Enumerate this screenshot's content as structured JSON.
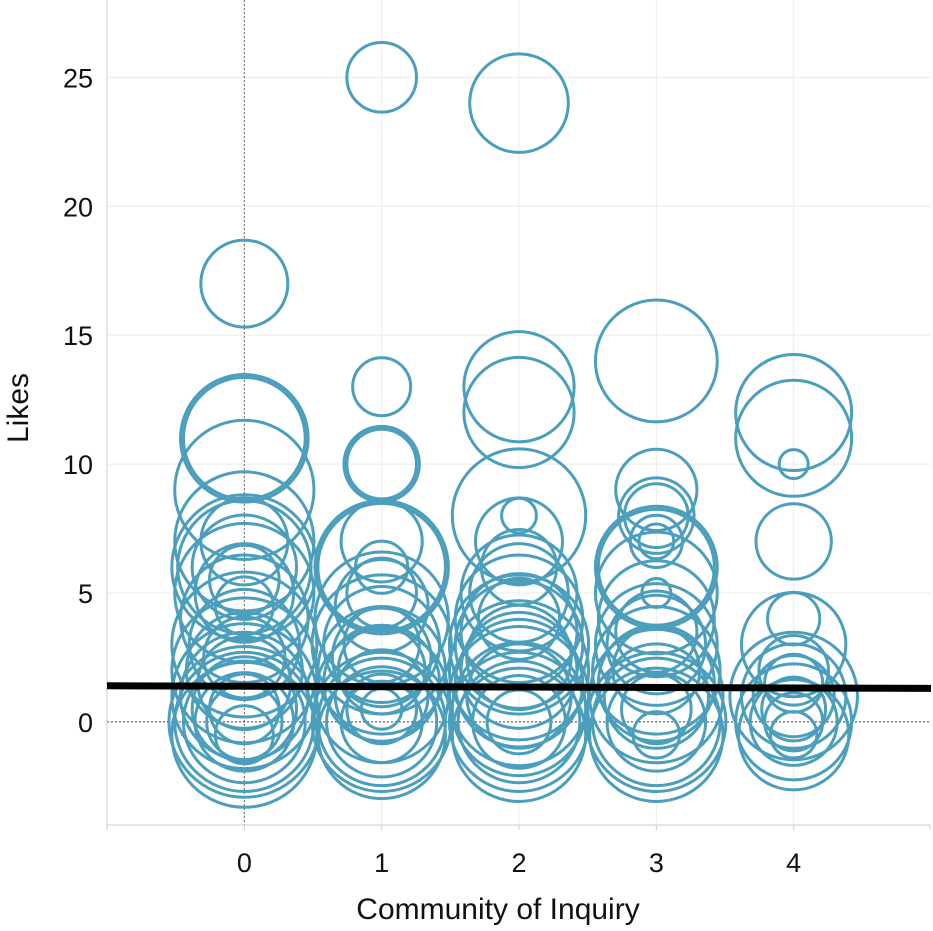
{
  "chart_data": {
    "type": "scatter",
    "title": "",
    "xlabel": "Community of Inquiry",
    "ylabel": "Likes",
    "xlim": [
      -1,
      5
    ],
    "ylim": [
      -4,
      28
    ],
    "xticks": [
      0,
      1,
      2,
      3,
      4
    ],
    "yticks": [
      0,
      5,
      10,
      15,
      20,
      25
    ],
    "grid": true,
    "reference_lines": {
      "x": 0,
      "y": 0
    },
    "bubble_color": "#4b9ebc",
    "trend_line": {
      "color": "#000000",
      "points": [
        [
          -1,
          1.4
        ],
        [
          5,
          1.3
        ]
      ]
    },
    "points": [
      {
        "x": 0,
        "y": 17,
        "size": 1.5
      },
      {
        "x": 0,
        "y": 11,
        "size": 2.2
      },
      {
        "x": 0,
        "y": 11,
        "size": 2.1
      },
      {
        "x": 0,
        "y": 9,
        "size": 2.4
      },
      {
        "x": 0,
        "y": 7,
        "size": 2.4
      },
      {
        "x": 0,
        "y": 7,
        "size": 1.5
      },
      {
        "x": 0,
        "y": 6,
        "size": 2.5
      },
      {
        "x": 0,
        "y": 6,
        "size": 2.3
      },
      {
        "x": 0,
        "y": 6,
        "size": 1.8
      },
      {
        "x": 0,
        "y": 5.5,
        "size": 1.2
      },
      {
        "x": 0,
        "y": 5,
        "size": 2.4
      },
      {
        "x": 0,
        "y": 5,
        "size": 1.7
      },
      {
        "x": 0,
        "y": 4.5,
        "size": 1.0
      },
      {
        "x": 0,
        "y": 4,
        "size": 2.2
      },
      {
        "x": 0,
        "y": 3,
        "size": 2.5
      },
      {
        "x": 0,
        "y": 3,
        "size": 1.9
      },
      {
        "x": 0,
        "y": 2.5,
        "size": 1.4
      },
      {
        "x": 0,
        "y": 2,
        "size": 2.5
      },
      {
        "x": 0,
        "y": 2,
        "size": 2.0
      },
      {
        "x": 0,
        "y": 1.5,
        "size": 1.6
      },
      {
        "x": 0,
        "y": 1,
        "size": 2.5
      },
      {
        "x": 0,
        "y": 1,
        "size": 2.2
      },
      {
        "x": 0,
        "y": 0.5,
        "size": 1.8
      },
      {
        "x": 0,
        "y": 0.5,
        "size": 1.2
      },
      {
        "x": 0,
        "y": 0,
        "size": 2.6
      },
      {
        "x": 0,
        "y": 0,
        "size": 2.4
      },
      {
        "x": 0,
        "y": 0,
        "size": 2.1
      },
      {
        "x": 0,
        "y": 0,
        "size": 1.7
      },
      {
        "x": 0,
        "y": 0,
        "size": 1.3
      },
      {
        "x": 0,
        "y": -0.5,
        "size": 2.5
      },
      {
        "x": 0,
        "y": -0.5,
        "size": 1.0
      },
      {
        "x": 1,
        "y": 25,
        "size": 1.2
      },
      {
        "x": 1,
        "y": 13,
        "size": 1.0
      },
      {
        "x": 1,
        "y": 10,
        "size": 1.3
      },
      {
        "x": 1,
        "y": 10,
        "size": 1.2
      },
      {
        "x": 1,
        "y": 7,
        "size": 1.4
      },
      {
        "x": 1,
        "y": 6,
        "size": 2.3
      },
      {
        "x": 1,
        "y": 6,
        "size": 2.2
      },
      {
        "x": 1,
        "y": 6,
        "size": 0.9
      },
      {
        "x": 1,
        "y": 5,
        "size": 1.2
      },
      {
        "x": 1,
        "y": 4.5,
        "size": 1.6
      },
      {
        "x": 1,
        "y": 4,
        "size": 2.3
      },
      {
        "x": 1,
        "y": 3,
        "size": 2.4
      },
      {
        "x": 1,
        "y": 3,
        "size": 2.0
      },
      {
        "x": 1,
        "y": 3,
        "size": 1.3
      },
      {
        "x": 1,
        "y": 2.5,
        "size": 1.7
      },
      {
        "x": 1,
        "y": 2,
        "size": 2.2
      },
      {
        "x": 1,
        "y": 2,
        "size": 1.5
      },
      {
        "x": 1,
        "y": 1.5,
        "size": 2.0
      },
      {
        "x": 1,
        "y": 1,
        "size": 2.3
      },
      {
        "x": 1,
        "y": 1,
        "size": 1.6
      },
      {
        "x": 1,
        "y": 0.5,
        "size": 1.2
      },
      {
        "x": 1,
        "y": 0,
        "size": 2.4
      },
      {
        "x": 1,
        "y": 0,
        "size": 2.2
      },
      {
        "x": 1,
        "y": 0,
        "size": 1.9
      },
      {
        "x": 1,
        "y": 0,
        "size": 1.4
      },
      {
        "x": 1,
        "y": -0.5,
        "size": 2.2
      },
      {
        "x": 1,
        "y": 0.5,
        "size": 0.7
      },
      {
        "x": 2,
        "y": 24,
        "size": 1.7
      },
      {
        "x": 2,
        "y": 13,
        "size": 1.9
      },
      {
        "x": 2,
        "y": 12,
        "size": 1.9
      },
      {
        "x": 2,
        "y": 8,
        "size": 2.3
      },
      {
        "x": 2,
        "y": 8,
        "size": 0.6
      },
      {
        "x": 2,
        "y": 7,
        "size": 1.5
      },
      {
        "x": 2,
        "y": 6,
        "size": 1.3
      },
      {
        "x": 2,
        "y": 5,
        "size": 2.0
      },
      {
        "x": 2,
        "y": 5,
        "size": 1.7
      },
      {
        "x": 2,
        "y": 4,
        "size": 2.2
      },
      {
        "x": 2,
        "y": 4,
        "size": 1.4
      },
      {
        "x": 2,
        "y": 3.5,
        "size": 2.0
      },
      {
        "x": 2,
        "y": 3,
        "size": 2.4
      },
      {
        "x": 2,
        "y": 3,
        "size": 2.2
      },
      {
        "x": 2,
        "y": 2.5,
        "size": 1.8
      },
      {
        "x": 2,
        "y": 2,
        "size": 2.4
      },
      {
        "x": 2,
        "y": 2,
        "size": 2.0
      },
      {
        "x": 2,
        "y": 1.5,
        "size": 2.2
      },
      {
        "x": 2,
        "y": 1,
        "size": 2.4
      },
      {
        "x": 2,
        "y": 1,
        "size": 1.8
      },
      {
        "x": 2,
        "y": 0.5,
        "size": 2.3
      },
      {
        "x": 2,
        "y": 0,
        "size": 2.4
      },
      {
        "x": 2,
        "y": 0,
        "size": 2.1
      },
      {
        "x": 2,
        "y": 0,
        "size": 1.6
      },
      {
        "x": 2,
        "y": 0,
        "size": 1.1
      },
      {
        "x": 2,
        "y": -0.5,
        "size": 2.3
      },
      {
        "x": 3,
        "y": 14,
        "size": 2.1
      },
      {
        "x": 3,
        "y": 9,
        "size": 1.4
      },
      {
        "x": 3,
        "y": 8,
        "size": 1.3
      },
      {
        "x": 3,
        "y": 8,
        "size": 1.1
      },
      {
        "x": 3,
        "y": 7,
        "size": 0.9
      },
      {
        "x": 3,
        "y": 7,
        "size": 0.6
      },
      {
        "x": 3,
        "y": 6,
        "size": 2.1
      },
      {
        "x": 3,
        "y": 6,
        "size": 2.0
      },
      {
        "x": 3,
        "y": 5,
        "size": 2.1
      },
      {
        "x": 3,
        "y": 5,
        "size": 0.5
      },
      {
        "x": 3,
        "y": 4,
        "size": 2.0
      },
      {
        "x": 3,
        "y": 3.5,
        "size": 1.4
      },
      {
        "x": 3,
        "y": 3,
        "size": 2.1
      },
      {
        "x": 3,
        "y": 3,
        "size": 1.7
      },
      {
        "x": 3,
        "y": 2,
        "size": 2.2
      },
      {
        "x": 3,
        "y": 2,
        "size": 1.5
      },
      {
        "x": 3,
        "y": 1.5,
        "size": 2.0
      },
      {
        "x": 3,
        "y": 1,
        "size": 2.3
      },
      {
        "x": 3,
        "y": 1,
        "size": 1.8
      },
      {
        "x": 3,
        "y": 0.5,
        "size": 1.2
      },
      {
        "x": 3,
        "y": 0,
        "size": 2.4
      },
      {
        "x": 3,
        "y": 0,
        "size": 2.2
      },
      {
        "x": 3,
        "y": 0,
        "size": 1.7
      },
      {
        "x": 3,
        "y": -0.5,
        "size": 2.3
      },
      {
        "x": 3,
        "y": -0.5,
        "size": 0.8
      },
      {
        "x": 4,
        "y": 12,
        "size": 2.0
      },
      {
        "x": 4,
        "y": 11,
        "size": 2.0
      },
      {
        "x": 4,
        "y": 10,
        "size": 0.5
      },
      {
        "x": 4,
        "y": 7,
        "size": 1.3
      },
      {
        "x": 4,
        "y": 4,
        "size": 0.9
      },
      {
        "x": 4,
        "y": 3,
        "size": 1.8
      },
      {
        "x": 4,
        "y": 2,
        "size": 1.2
      },
      {
        "x": 4,
        "y": 1.5,
        "size": 1.0
      },
      {
        "x": 4,
        "y": 1,
        "size": 2.2
      },
      {
        "x": 4,
        "y": 1,
        "size": 1.8
      },
      {
        "x": 4,
        "y": 1,
        "size": 1.4
      },
      {
        "x": 4,
        "y": 0.5,
        "size": 1.1
      },
      {
        "x": 4,
        "y": 0,
        "size": 2.0
      },
      {
        "x": 4,
        "y": 0,
        "size": 1.5
      },
      {
        "x": 4,
        "y": 0,
        "size": 1.0
      },
      {
        "x": 4,
        "y": -0.5,
        "size": 1.9
      },
      {
        "x": 4,
        "y": -0.5,
        "size": 0.8
      }
    ]
  }
}
